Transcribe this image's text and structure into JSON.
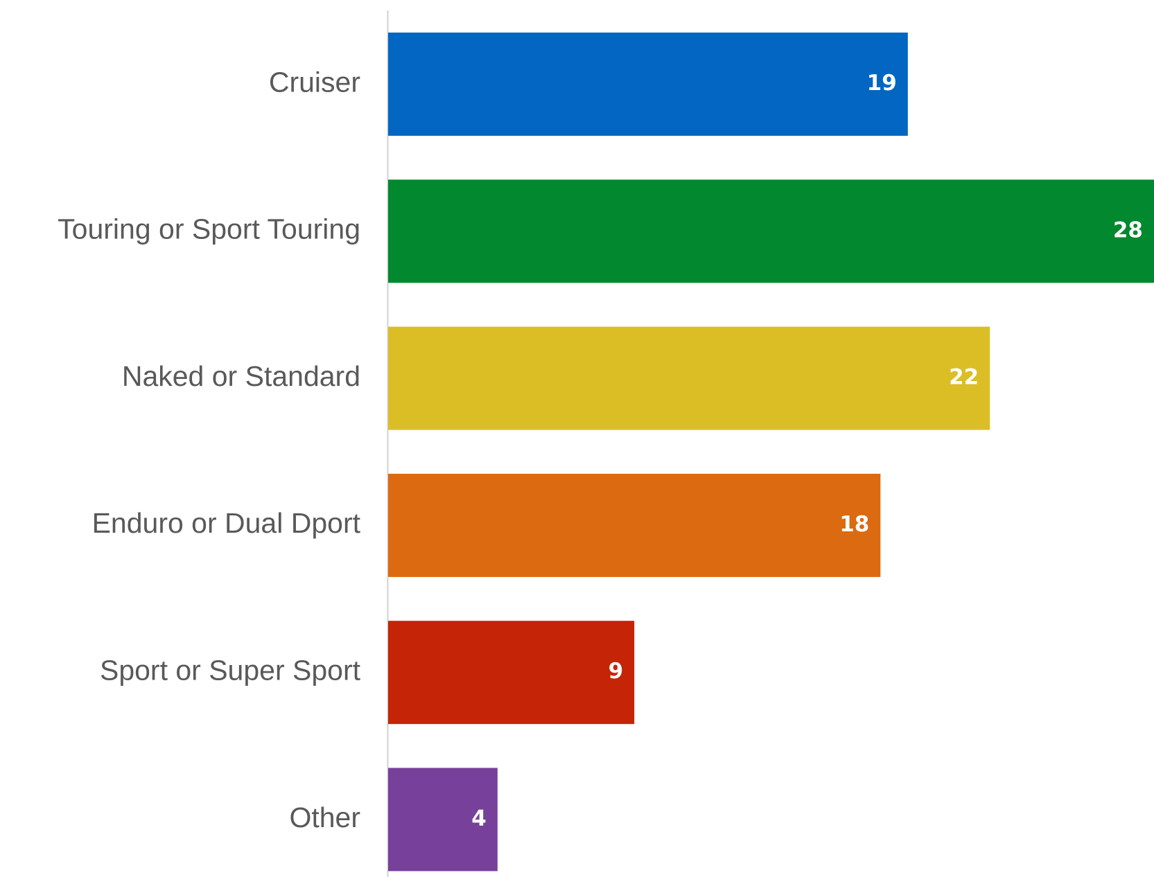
{
  "chart_data": {
    "type": "bar",
    "orientation": "horizontal",
    "categories": [
      "Cruiser",
      "Touring or Sport Touring",
      "Naked or Standard",
      "Enduro or Dual Dport",
      "Sport or Super Sport",
      "Other"
    ],
    "values": [
      19,
      28,
      22,
      18,
      9,
      4
    ],
    "colors": [
      "#0366c3",
      "#02882e",
      "#dbbe26",
      "#dc6a10",
      "#c52406",
      "#77409a"
    ],
    "xlim": [
      0,
      28
    ]
  }
}
